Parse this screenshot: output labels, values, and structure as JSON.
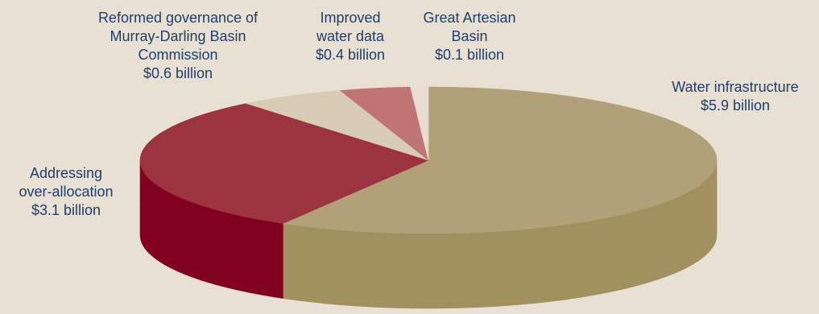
{
  "chart_data": {
    "type": "pie",
    "title": "",
    "unit": "billion",
    "slices": [
      {
        "name": "Water infrastructure",
        "value": 5.9,
        "value_label": "$5.9 billion",
        "color": "#b0a178",
        "side_color": "#a1915f",
        "label_lines": [
          "Water infrastructure",
          "$5.9 billion"
        ]
      },
      {
        "name": "Addressing over-allocation",
        "value": 3.1,
        "value_label": "$3.1 billion",
        "color": "#9c3440",
        "side_color": "#800020",
        "label_lines": [
          "Addressing",
          "over-allocation",
          "$3.1 billion"
        ]
      },
      {
        "name": "Reformed governance of Murray-Darling Basin Commission",
        "value": 0.6,
        "value_label": "$0.6 billion",
        "color": "#d8ccb4",
        "side_color": "#c2b598",
        "label_lines": [
          "Reformed governance of",
          "Murray-Darling Basin",
          "Commission",
          "$0.6 billion"
        ]
      },
      {
        "name": "Improved water data",
        "value": 0.4,
        "value_label": "$0.4 billion",
        "color": "#c07575",
        "side_color": "#a85c5c",
        "label_lines": [
          "Improved",
          "water data",
          "$0.4 billion"
        ]
      },
      {
        "name": "Great Artesian Basin",
        "value": 0.1,
        "value_label": "$0.1 billion",
        "color": "#e6ddd0",
        "side_color": "#cfc4b2",
        "label_lines": [
          "Great Artesian",
          "Basin",
          "$0.1 billion"
        ]
      }
    ]
  }
}
